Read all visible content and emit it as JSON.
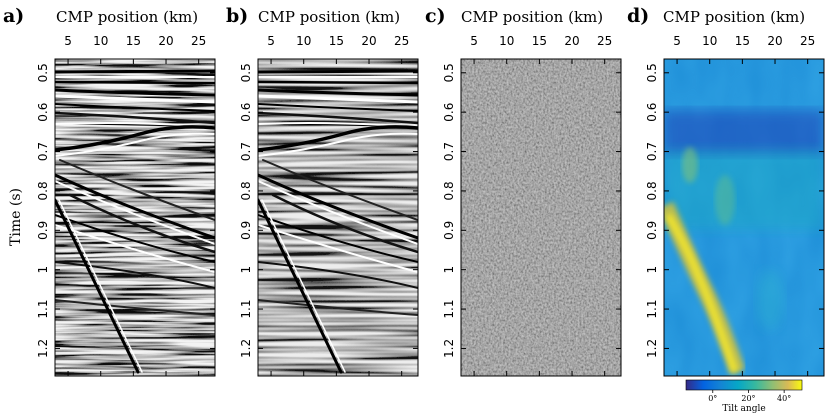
{
  "figure": {
    "ylabel": "Time (s)",
    "panels": [
      {
        "letter": "a)",
        "title": "CMP position (km)",
        "kind": "seismic-original"
      },
      {
        "letter": "b)",
        "title": "CMP position (km)",
        "kind": "seismic-filtered"
      },
      {
        "letter": "c)",
        "title": "CMP position (km)",
        "kind": "noise-difference"
      },
      {
        "letter": "d)",
        "title": "CMP position (km)",
        "kind": "tilt-angle-map"
      }
    ],
    "x_ticks": [
      "5",
      "10",
      "15",
      "20",
      "25"
    ],
    "x_tick_values": [
      5,
      10,
      15,
      20,
      25
    ],
    "x_range": [
      3,
      27.5
    ],
    "y_ticks": [
      "0.5",
      "0.6",
      "0.7",
      "0.8",
      "0.9",
      "1",
      "1.1",
      "1.2"
    ],
    "y_tick_values": [
      0.5,
      0.6,
      0.7,
      0.8,
      0.9,
      1.0,
      1.1,
      1.2
    ],
    "y_range": [
      0.465,
      1.27
    ],
    "colorbar": {
      "title": "Tilt angle",
      "ticks": [
        "0°",
        "20°",
        "40°"
      ],
      "tick_values": [
        0,
        20,
        40
      ],
      "range": [
        -15,
        50
      ],
      "colormap": "parula"
    }
  }
}
